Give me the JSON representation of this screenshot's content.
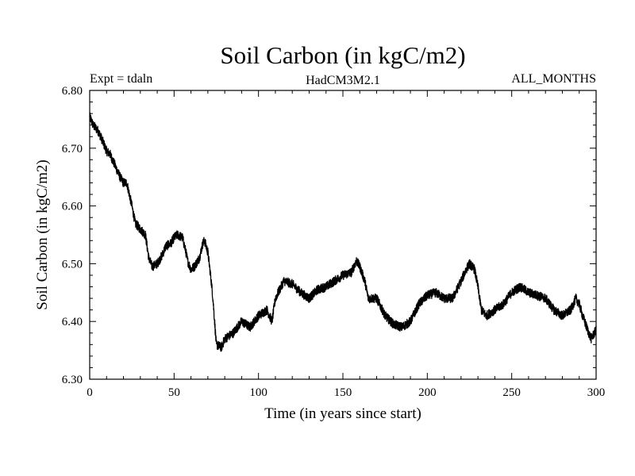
{
  "chart_data": {
    "type": "line",
    "title": "Soil Carbon (in kgC/m2)",
    "subtitle_left": "Expt = tdaln",
    "subtitle_center": "HadCM3M2.1",
    "subtitle_right": "ALL_MONTHS",
    "xlabel": "Time (in years since start)",
    "ylabel": "Soil Carbon (in kgC/m2)",
    "xlim": [
      0,
      300
    ],
    "ylim": [
      6.3,
      6.8
    ],
    "x_ticks": [
      0,
      50,
      100,
      150,
      200,
      250,
      300
    ],
    "x_tick_labels": [
      "0",
      "50",
      "100",
      "150",
      "200",
      "250",
      "300"
    ],
    "y_ticks": [
      6.3,
      6.4,
      6.5,
      6.6,
      6.7,
      6.8
    ],
    "y_tick_labels": [
      "6.30",
      "6.40",
      "6.50",
      "6.60",
      "6.70",
      "6.80"
    ],
    "grid": false,
    "series": [
      {
        "name": "Soil Carbon",
        "color": "#000000",
        "noise_amplitude": 0.008,
        "x": [
          0,
          2,
          5,
          8,
          10,
          12,
          15,
          18,
          20,
          22,
          25,
          27,
          30,
          33,
          35,
          37,
          40,
          43,
          45,
          48,
          50,
          52,
          55,
          57,
          58,
          60,
          62,
          65,
          67,
          68,
          70,
          72,
          73,
          75,
          78,
          80,
          85,
          90,
          95,
          100,
          105,
          108,
          110,
          115,
          120,
          125,
          130,
          135,
          140,
          145,
          150,
          155,
          158,
          160,
          163,
          165,
          170,
          175,
          180,
          185,
          190,
          195,
          200,
          205,
          210,
          215,
          220,
          223,
          225,
          228,
          230,
          232,
          235,
          240,
          245,
          250,
          255,
          260,
          265,
          270,
          275,
          280,
          285,
          288,
          290,
          292,
          295,
          297,
          300
        ],
        "values": [
          6.755,
          6.74,
          6.73,
          6.71,
          6.695,
          6.69,
          6.67,
          6.65,
          6.64,
          6.64,
          6.6,
          6.57,
          6.56,
          6.55,
          6.51,
          6.495,
          6.5,
          6.515,
          6.53,
          6.535,
          6.545,
          6.55,
          6.545,
          6.52,
          6.505,
          6.49,
          6.495,
          6.51,
          6.535,
          6.54,
          6.52,
          6.47,
          6.44,
          6.36,
          6.355,
          6.37,
          6.38,
          6.4,
          6.39,
          6.41,
          6.42,
          6.4,
          6.44,
          6.47,
          6.465,
          6.45,
          6.44,
          6.455,
          6.46,
          6.47,
          6.48,
          6.485,
          6.505,
          6.495,
          6.47,
          6.44,
          6.44,
          6.41,
          6.395,
          6.39,
          6.4,
          6.43,
          6.445,
          6.45,
          6.44,
          6.44,
          6.47,
          6.49,
          6.5,
          6.49,
          6.46,
          6.42,
          6.41,
          6.42,
          6.43,
          6.45,
          6.46,
          6.45,
          6.445,
          6.44,
          6.42,
          6.41,
          6.42,
          6.44,
          6.43,
          6.41,
          6.385,
          6.37,
          6.385
        ]
      }
    ]
  }
}
